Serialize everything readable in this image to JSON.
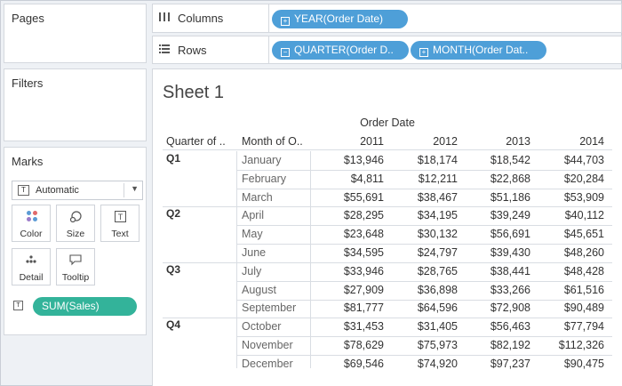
{
  "left": {
    "pages_title": "Pages",
    "filters_title": "Filters",
    "marks": {
      "title": "Marks",
      "type_select": "Automatic",
      "type_icon_label": "T",
      "buttons": {
        "color": "Color",
        "size": "Size",
        "text": "Text",
        "detail": "Detail",
        "tooltip": "Tooltip"
      },
      "text_icon_label": "T",
      "pill": "SUM(Sales)",
      "color_dots": [
        "#5b9bd5",
        "#e0696b",
        "#9b7bc9",
        "#5b9bd5"
      ]
    }
  },
  "shelves": {
    "columns_label": "Columns",
    "rows_label": "Rows",
    "columns_pills": [
      "YEAR(Order Date)"
    ],
    "rows_pills": [
      "QUARTER(Order D..",
      "MONTH(Order Dat.."
    ],
    "pill_color": "#4e9fd8"
  },
  "sheet": {
    "title": "Sheet 1",
    "column_group_header": "Order Date",
    "row_headers": [
      "Quarter of ..",
      "Month of O.."
    ],
    "years": [
      "2011",
      "2012",
      "2013",
      "2014"
    ],
    "quarters": [
      {
        "label": "Q1",
        "months": [
          {
            "month": "January",
            "values": [
              "$13,946",
              "$18,174",
              "$18,542",
              "$44,703"
            ]
          },
          {
            "month": "February",
            "values": [
              "$4,811",
              "$12,211",
              "$22,868",
              "$20,284"
            ]
          },
          {
            "month": "March",
            "values": [
              "$55,691",
              "$38,467",
              "$51,186",
              "$53,909"
            ]
          }
        ]
      },
      {
        "label": "Q2",
        "months": [
          {
            "month": "April",
            "values": [
              "$28,295",
              "$34,195",
              "$39,249",
              "$40,112"
            ]
          },
          {
            "month": "May",
            "values": [
              "$23,648",
              "$30,132",
              "$56,691",
              "$45,651"
            ]
          },
          {
            "month": "June",
            "values": [
              "$34,595",
              "$24,797",
              "$39,430",
              "$48,260"
            ]
          }
        ]
      },
      {
        "label": "Q3",
        "months": [
          {
            "month": "July",
            "values": [
              "$33,946",
              "$28,765",
              "$38,441",
              "$48,428"
            ]
          },
          {
            "month": "August",
            "values": [
              "$27,909",
              "$36,898",
              "$33,266",
              "$61,516"
            ]
          },
          {
            "month": "September",
            "values": [
              "$81,777",
              "$64,596",
              "$72,908",
              "$90,489"
            ]
          }
        ]
      },
      {
        "label": "Q4",
        "months": [
          {
            "month": "October",
            "values": [
              "$31,453",
              "$31,405",
              "$56,463",
              "$77,794"
            ]
          },
          {
            "month": "November",
            "values": [
              "$78,629",
              "$75,973",
              "$82,192",
              "$112,326"
            ]
          },
          {
            "month": "December",
            "values": [
              "$69,546",
              "$74,920",
              "$97,237",
              "$90,475"
            ]
          }
        ]
      }
    ]
  }
}
